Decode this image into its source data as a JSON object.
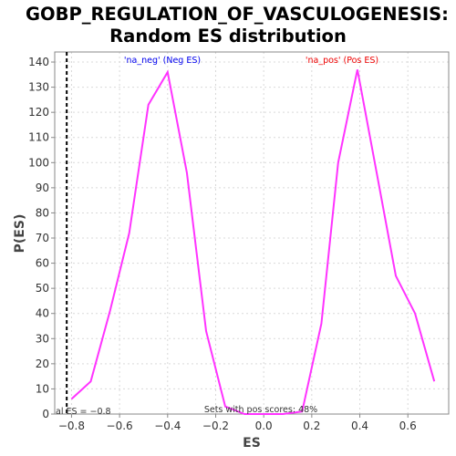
{
  "chart_data": {
    "type": "line",
    "title": "GOBP_REGULATION_OF_VASCULOGENESIS:",
    "subtitle": "Random ES distribution",
    "xlabel": "ES",
    "ylabel": "P(ES)",
    "xlim": [
      -0.87,
      0.77
    ],
    "ylim": [
      0,
      144
    ],
    "x_ticks": [
      -0.8,
      -0.6,
      -0.4,
      -0.2,
      0.0,
      0.2,
      0.4,
      0.6
    ],
    "x_tick_labels": [
      "−0.8",
      "−0.6",
      "−0.4",
      "−0.2",
      "0.0",
      "0.2",
      "0.4",
      "0.6"
    ],
    "y_ticks": [
      0,
      10,
      20,
      30,
      40,
      50,
      60,
      70,
      80,
      90,
      100,
      110,
      120,
      130,
      140
    ],
    "grid": true,
    "series": [
      {
        "color": "#ff33ff",
        "x": [
          -0.8,
          -0.72,
          -0.64,
          -0.56,
          -0.48,
          -0.4,
          -0.32,
          -0.24,
          -0.16,
          -0.08,
          0.0,
          0.08,
          0.16,
          0.24,
          0.31,
          0.39,
          0.47,
          0.55,
          0.63,
          0.71
        ],
        "y": [
          6,
          13,
          41,
          72,
          123,
          136,
          96,
          33,
          3,
          0,
          0,
          0,
          1,
          36,
          100,
          137,
          96,
          55,
          40,
          13
        ]
      }
    ],
    "reference_line": {
      "x": -0.82,
      "label": "al ES = −0.8",
      "color": "#000000"
    },
    "annotations": [
      {
        "text": "'na_neg' (Neg ES)",
        "color": "#0000ee"
      },
      {
        "text": "'na_pos' (Pos ES)",
        "color": "#ee0000"
      },
      {
        "text": "Sets with pos scores: 48%",
        "color": "#333333"
      }
    ]
  }
}
